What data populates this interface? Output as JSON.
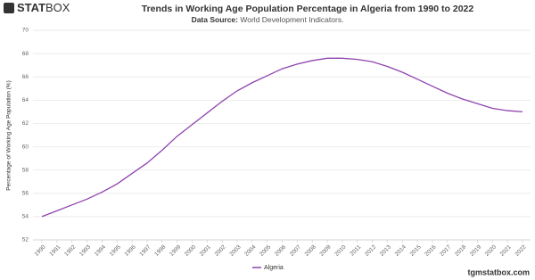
{
  "logo": {
    "left": "STAT",
    "right": "BOX"
  },
  "footer": "tgmstatbox.com",
  "chart_data": {
    "type": "line",
    "title": "Trends in Working Age Population Percentage in Algeria from 1990 to 2022",
    "subtitle_label": "Data Source:",
    "subtitle": "World Development Indicators.",
    "y_label": "Percentage of Working Age Population (%)",
    "x": [
      1990,
      1991,
      1992,
      1993,
      1994,
      1995,
      1996,
      1997,
      1998,
      1999,
      2000,
      2001,
      2002,
      2003,
      2004,
      2005,
      2006,
      2007,
      2008,
      2009,
      2010,
      2011,
      2012,
      2013,
      2014,
      2015,
      2016,
      2017,
      2018,
      2019,
      2020,
      2021,
      2022
    ],
    "xlim": [
      1990,
      2022
    ],
    "series": [
      {
        "name": "Algeria",
        "color": "#8e44ad",
        "values": [
          54.0,
          54.5,
          55.0,
          55.5,
          56.1,
          56.8,
          57.7,
          58.6,
          59.7,
          60.9,
          61.9,
          62.9,
          63.9,
          64.8,
          65.5,
          66.1,
          66.7,
          67.1,
          67.4,
          67.6,
          67.6,
          67.5,
          67.3,
          66.9,
          66.4,
          65.8,
          65.2,
          64.6,
          64.1,
          63.7,
          63.3,
          63.1,
          63.0
        ]
      }
    ],
    "ylim": [
      52,
      70
    ],
    "yticks": [
      52,
      54,
      56,
      58,
      60,
      62,
      64,
      66,
      68,
      70
    ],
    "grid": true,
    "legend": "bottom"
  }
}
